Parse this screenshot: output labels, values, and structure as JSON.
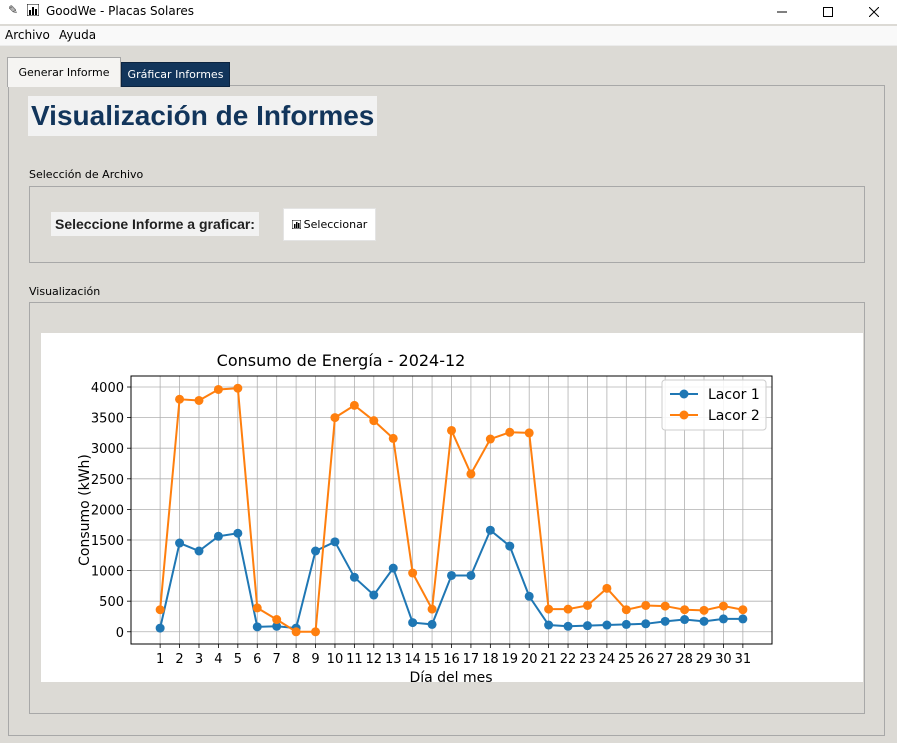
{
  "window": {
    "title": "GoodWe - Placas Solares",
    "controls": [
      "minimize",
      "maximize",
      "close"
    ]
  },
  "menubar": {
    "items": [
      "Archivo",
      "Ayuda"
    ]
  },
  "tabs": [
    {
      "label": "Generar Informe",
      "active": true
    },
    {
      "label": "Gráficar Informes",
      "active": false
    }
  ],
  "page": {
    "title": "Visualización de Informes",
    "file_section": {
      "label": "Selección de Archivo",
      "prompt": "Seleccione Informe a graficar:",
      "button_label": "Seleccionar",
      "button_icon": "bar-chart-icon"
    },
    "viz_section": {
      "label": "Visualización"
    }
  },
  "colors": {
    "title_color": "#12355b",
    "tab_active_bg": "#12355b",
    "series1": "#1f77b4",
    "series2": "#ff7f0e"
  },
  "chart_data": {
    "type": "line",
    "title": "Consumo de Energía - 2024-12",
    "xlabel": "Día del mes",
    "ylabel": "Consumo (kWh)",
    "x": [
      1,
      2,
      3,
      4,
      5,
      6,
      7,
      8,
      9,
      10,
      11,
      12,
      13,
      14,
      15,
      16,
      17,
      18,
      19,
      20,
      21,
      22,
      23,
      24,
      25,
      26,
      27,
      28,
      29,
      30,
      31
    ],
    "ylim": [
      -200,
      4180
    ],
    "yticks": [
      0,
      500,
      1000,
      1500,
      2000,
      2500,
      3000,
      3500,
      4000
    ],
    "grid": true,
    "legend_position": "top-right",
    "series": [
      {
        "name": "Lacor 1",
        "color": "#1f77b4",
        "values": [
          60,
          1450,
          1320,
          1560,
          1610,
          80,
          90,
          60,
          1320,
          1470,
          890,
          600,
          1040,
          150,
          120,
          920,
          920,
          1660,
          1400,
          580,
          110,
          90,
          100,
          110,
          120,
          130,
          170,
          200,
          170,
          210,
          210
        ]
      },
      {
        "name": "Lacor 2",
        "color": "#ff7f0e",
        "values": [
          360,
          3800,
          3780,
          3960,
          3980,
          390,
          200,
          0,
          0,
          3500,
          3700,
          3450,
          3160,
          960,
          370,
          3290,
          2580,
          3150,
          3260,
          3250,
          370,
          370,
          430,
          710,
          360,
          430,
          420,
          360,
          350,
          420,
          360
        ]
      }
    ]
  }
}
